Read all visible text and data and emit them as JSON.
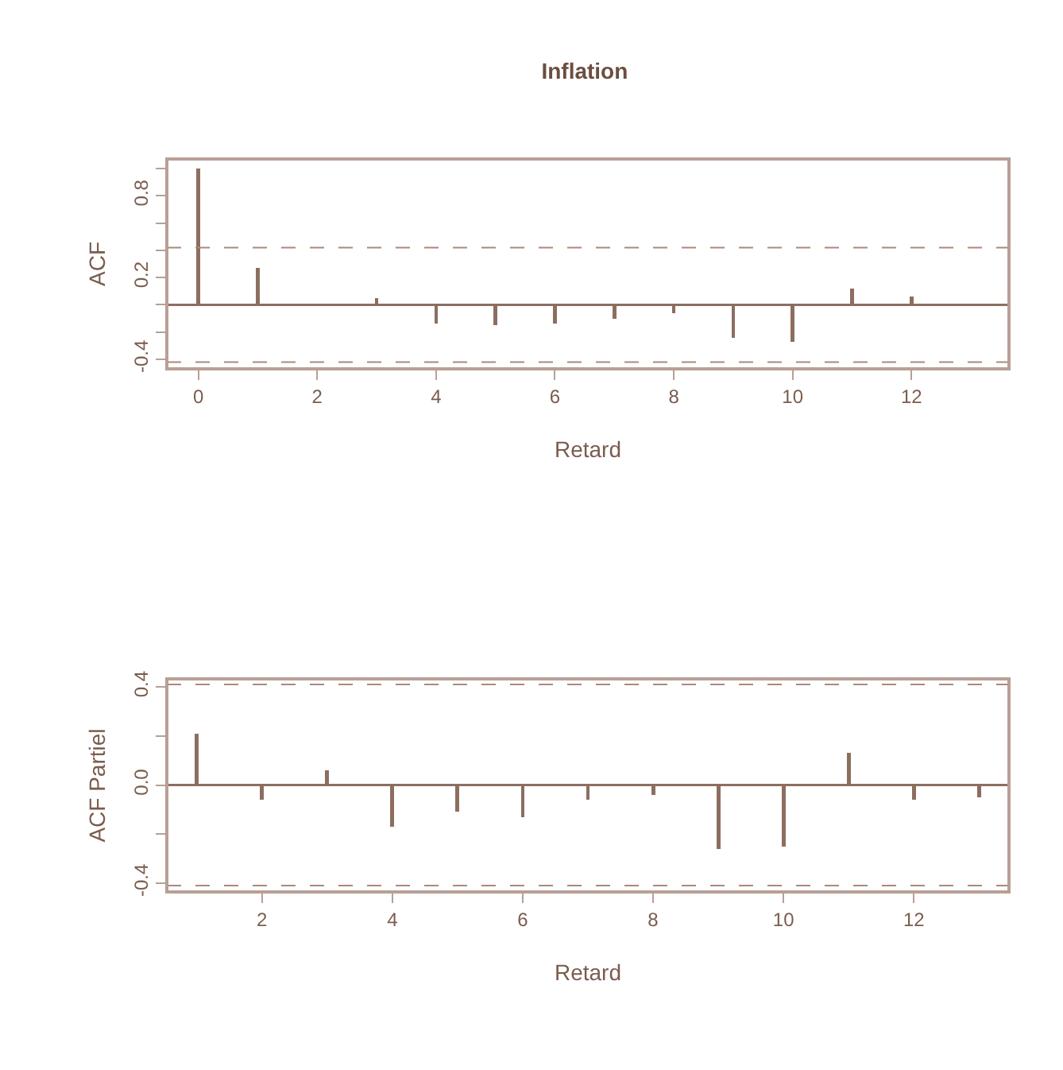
{
  "chart_data": [
    {
      "type": "bar",
      "title": "Inflation",
      "xlabel": "Retard",
      "ylabel": "ACF",
      "x": [
        0,
        1,
        2,
        3,
        4,
        5,
        6,
        7,
        8,
        9,
        10,
        11,
        12
      ],
      "values": [
        1.0,
        0.27,
        0.0,
        0.05,
        -0.14,
        -0.15,
        -0.14,
        -0.1,
        -0.06,
        -0.24,
        -0.27,
        0.12,
        0.06
      ],
      "color": "#8c6e60",
      "xlim": [
        -0.53,
        13.64
      ],
      "xticks": [
        0,
        2,
        4,
        6,
        8,
        10,
        12
      ],
      "ylim": [
        -0.47,
        1.07
      ],
      "yticks": [
        {
          "value": -0.4,
          "label": "-0.4"
        },
        {
          "value": -0.2,
          "label": null
        },
        {
          "value": 0,
          "label": null
        },
        {
          "value": 0.2,
          "label": "0.2"
        },
        {
          "value": 0.4,
          "label": null
        },
        {
          "value": 0.6,
          "label": null
        },
        {
          "value": 0.8,
          "label": "0.8"
        },
        {
          "value": 1.0,
          "label": null
        }
      ],
      "ref_lines": [
        {
          "axis": "y",
          "value": 0,
          "line_style": "solid",
          "color": "#8c6e60"
        },
        {
          "axis": "y",
          "value": 0.42,
          "line_style": "dashed",
          "color": "#a88a7c"
        },
        {
          "axis": "y",
          "value": -0.42,
          "line_style": "dashed",
          "color": "#a88a7c"
        }
      ],
      "grid": false,
      "legend": false
    },
    {
      "type": "bar",
      "xlabel": "Retard",
      "ylabel": "ACF Partiel",
      "x": [
        1,
        2,
        3,
        4,
        5,
        6,
        7,
        8,
        9,
        10,
        11,
        12,
        13
      ],
      "values": [
        0.21,
        -0.06,
        0.06,
        -0.17,
        -0.11,
        -0.13,
        -0.06,
        -0.04,
        -0.26,
        -0.25,
        0.13,
        -0.06,
        -0.05
      ],
      "color": "#8c6e60",
      "xlim": [
        0.54,
        13.46
      ],
      "xticks": [
        2,
        4,
        6,
        8,
        10,
        12
      ],
      "ylim": [
        -0.436,
        0.433
      ],
      "yticks": [
        {
          "value": -0.4,
          "label": "-0.4"
        },
        {
          "value": -0.2,
          "label": null
        },
        {
          "value": 0,
          "label": "0.0"
        },
        {
          "value": 0.2,
          "label": null
        },
        {
          "value": 0.4,
          "label": "0.4"
        }
      ],
      "ref_lines": [
        {
          "axis": "y",
          "value": 0,
          "line_style": "solid",
          "color": "#8c6e60"
        },
        {
          "axis": "y",
          "value": 0.41,
          "line_style": "dashed",
          "color": "#a88a7c"
        },
        {
          "axis": "y",
          "value": -0.41,
          "line_style": "dashed",
          "color": "#a88a7c"
        }
      ],
      "grid": false,
      "legend": false
    }
  ]
}
